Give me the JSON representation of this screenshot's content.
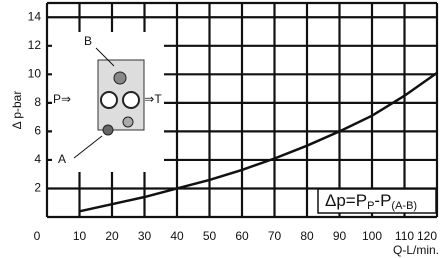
{
  "chart_data": {
    "type": "line",
    "y_label": "Δ p-bar",
    "x_label": "Q-L/min.",
    "x": [
      10,
      20,
      30,
      40,
      50,
      60,
      70,
      80,
      90,
      100,
      110,
      120
    ],
    "values": [
      0.4,
      0.9,
      1.4,
      2.0,
      2.6,
      3.3,
      4.1,
      5.0,
      6.0,
      7.1,
      8.5,
      10.1
    ],
    "color": "#111111",
    "xlim": [
      0,
      120
    ],
    "xticks": [
      0,
      10,
      20,
      30,
      40,
      50,
      60,
      70,
      80,
      90,
      100,
      110,
      120
    ],
    "ylim": [
      0,
      15
    ],
    "yticks": [
      2,
      4,
      6,
      8,
      10,
      12,
      14
    ],
    "grid": true,
    "inset_labels": [
      "B",
      "P⇒",
      "⇒T",
      "A"
    ],
    "formula": [
      {
        "text": "Δp=P"
      },
      {
        "text": "P",
        "sub": true
      },
      {
        "text": "-P"
      },
      {
        "text": "(A-B)",
        "sub": true
      }
    ]
  }
}
